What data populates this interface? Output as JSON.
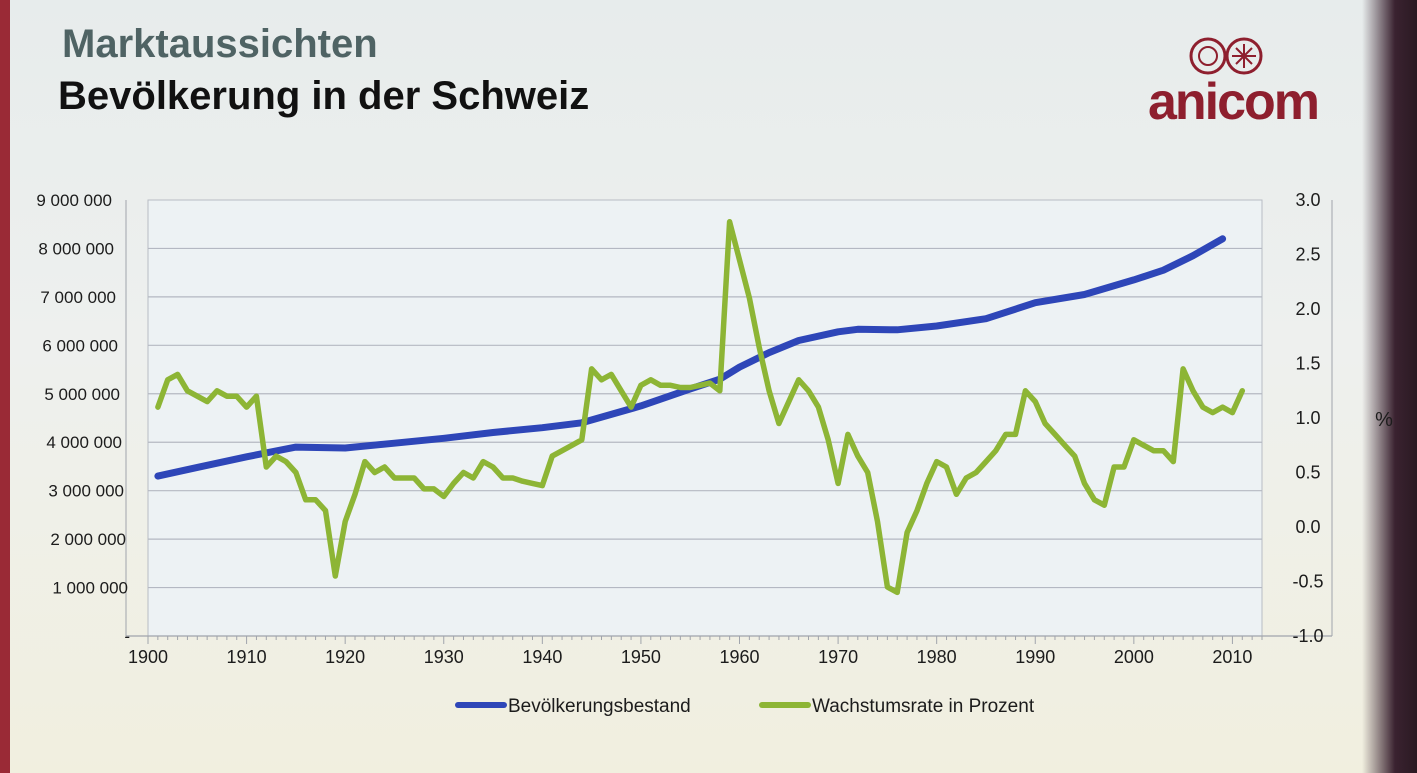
{
  "slide": {
    "heading": "Marktaussichten",
    "title": "Bevölkerung in der Schweiz"
  },
  "logo": {
    "text": "anicom",
    "color": "#8e1f2e"
  },
  "chart_data": {
    "type": "line",
    "title": "Bevölkerung in der Schweiz",
    "xlabel": "",
    "ylabel_left": "",
    "ylabel_right": "%",
    "x_ticks": [
      "1900",
      "1910",
      "1920",
      "1930",
      "1940",
      "1950",
      "1960",
      "1970",
      "1980",
      "1990",
      "2000",
      "2010"
    ],
    "y_left_ticks": [
      "-",
      "1 000 000",
      "2 000 000",
      "3 000 000",
      "4 000 000",
      "5 000 000",
      "6 000 000",
      "7 000 000",
      "8 000 000",
      "9 000 000"
    ],
    "y_right_ticks": [
      "-1.0",
      "-0.5",
      "0.0",
      "0.5",
      "1.0",
      "1.5",
      "2.0",
      "2.5",
      "3.0"
    ],
    "ylim_left": [
      0,
      9000000
    ],
    "ylim_right": [
      -1.0,
      3.0
    ],
    "xlim": [
      1900,
      2013
    ],
    "legend_position": "bottom",
    "series": [
      {
        "name": "Bevölkerungsbestand",
        "axis": "left",
        "color": "#2e46b8",
        "x": [
          1901,
          1905,
          1910,
          1915,
          1920,
          1925,
          1930,
          1935,
          1940,
          1944,
          1950,
          1955,
          1958,
          1960,
          1963,
          1966,
          1970,
          1972,
          1976,
          1980,
          1985,
          1990,
          1995,
          2000,
          2003,
          2006,
          2009
        ],
        "values": [
          3300000,
          3480000,
          3700000,
          3900000,
          3880000,
          3980000,
          4080000,
          4200000,
          4300000,
          4400000,
          4750000,
          5100000,
          5300000,
          5550000,
          5850000,
          6100000,
          6280000,
          6330000,
          6320000,
          6400000,
          6550000,
          6880000,
          7050000,
          7350000,
          7550000,
          7850000,
          8200000
        ]
      },
      {
        "name": "Wachstumsrate in Prozent",
        "axis": "right",
        "color": "#8db535",
        "x": [
          1901,
          1902,
          1903,
          1904,
          1905,
          1906,
          1907,
          1908,
          1909,
          1910,
          1911,
          1912,
          1913,
          1914,
          1915,
          1916,
          1917,
          1918,
          1919,
          1920,
          1921,
          1922,
          1923,
          1924,
          1925,
          1926,
          1927,
          1928,
          1929,
          1930,
          1931,
          1932,
          1933,
          1934,
          1935,
          1936,
          1937,
          1938,
          1939,
          1940,
          1941,
          1942,
          1943,
          1944,
          1945,
          1946,
          1947,
          1948,
          1949,
          1950,
          1951,
          1952,
          1953,
          1954,
          1955,
          1956,
          1957,
          1958,
          1959,
          1960,
          1961,
          1962,
          1963,
          1964,
          1965,
          1966,
          1967,
          1968,
          1969,
          1970,
          1971,
          1972,
          1973,
          1974,
          1975,
          1976,
          1977,
          1978,
          1979,
          1980,
          1981,
          1982,
          1983,
          1984,
          1985,
          1986,
          1987,
          1988,
          1989,
          1990,
          1991,
          1992,
          1993,
          1994,
          1995,
          1996,
          1997,
          1998,
          1999,
          2000,
          2001,
          2002,
          2003,
          2004,
          2005,
          2006,
          2007,
          2008,
          2009,
          2010,
          2011
        ],
        "values": [
          1.1,
          1.35,
          1.4,
          1.25,
          1.2,
          1.15,
          1.25,
          1.2,
          1.2,
          1.1,
          1.2,
          0.55,
          0.65,
          0.6,
          0.5,
          0.25,
          0.25,
          0.15,
          -0.45,
          0.05,
          0.3,
          0.6,
          0.5,
          0.55,
          0.45,
          0.45,
          0.45,
          0.35,
          0.35,
          0.28,
          0.4,
          0.5,
          0.45,
          0.6,
          0.55,
          0.45,
          0.45,
          0.42,
          0.4,
          0.38,
          0.65,
          0.7,
          0.75,
          0.8,
          1.45,
          1.35,
          1.4,
          1.25,
          1.1,
          1.3,
          1.35,
          1.3,
          1.3,
          1.28,
          1.28,
          1.3,
          1.32,
          1.25,
          2.8,
          2.45,
          2.1,
          1.65,
          1.25,
          0.95,
          1.15,
          1.35,
          1.25,
          1.1,
          0.8,
          0.4,
          0.85,
          0.65,
          0.5,
          0.05,
          -0.55,
          -0.6,
          -0.05,
          0.15,
          0.4,
          0.6,
          0.55,
          0.3,
          0.45,
          0.5,
          0.6,
          0.7,
          0.85,
          0.85,
          1.25,
          1.15,
          0.95,
          0.85,
          0.75,
          0.65,
          0.4,
          0.25,
          0.2,
          0.55,
          0.55,
          0.8,
          0.75,
          0.7,
          0.7,
          0.6,
          1.45,
          1.25,
          1.1,
          1.05,
          1.1,
          1.05,
          1.25
        ]
      }
    ]
  }
}
